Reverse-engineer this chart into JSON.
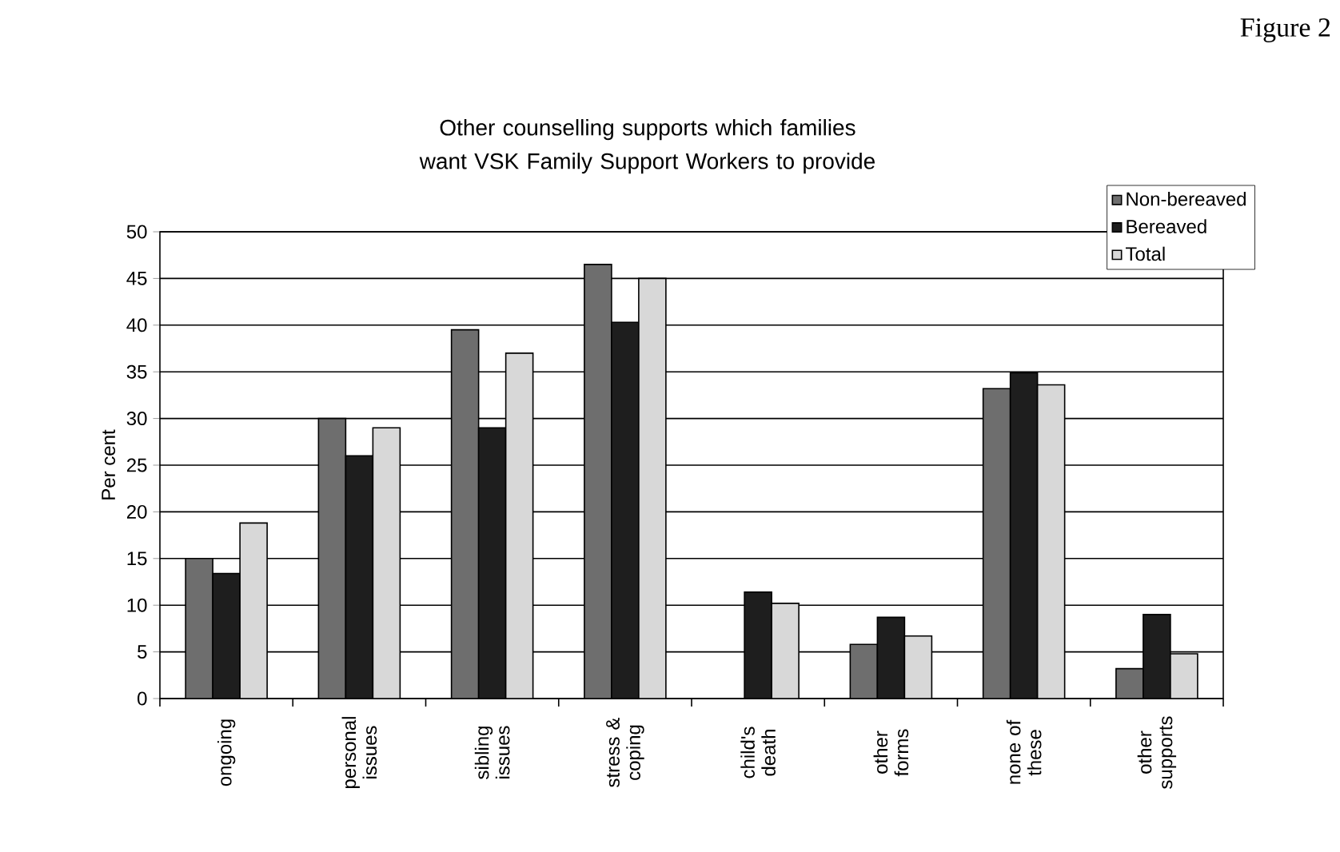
{
  "chart_data": {
    "type": "bar",
    "title": "Other counselling supports which families want VSK Family Support Workers to provide",
    "ylabel": "Per cent",
    "annotations": [
      "Figure 2"
    ],
    "categories": [
      "ongoing",
      "personal issues",
      "sibling issues",
      "stress & coping",
      "child's death",
      "other forms",
      "none of these",
      "other supports"
    ],
    "series": [
      {
        "name": "Non-bereaved",
        "color": "#6e6e6e",
        "values": [
          15,
          30,
          39.5,
          46.5,
          null,
          5.8,
          33.2,
          3.2
        ]
      },
      {
        "name": "Bereaved",
        "color": "#1e1e1e",
        "values": [
          13.4,
          26,
          29,
          40.3,
          11.4,
          8.7,
          34.9,
          9
        ]
      },
      {
        "name": "Total",
        "color": "#d8d8d8",
        "values": [
          18.8,
          29,
          37,
          45,
          10.2,
          6.7,
          33.6,
          4.8
        ]
      }
    ],
    "ylim": [
      0,
      50
    ],
    "yticks": [
      0,
      5,
      10,
      15,
      20,
      25,
      30,
      35,
      40,
      45,
      50
    ],
    "grid": "y",
    "legend": "top right"
  }
}
